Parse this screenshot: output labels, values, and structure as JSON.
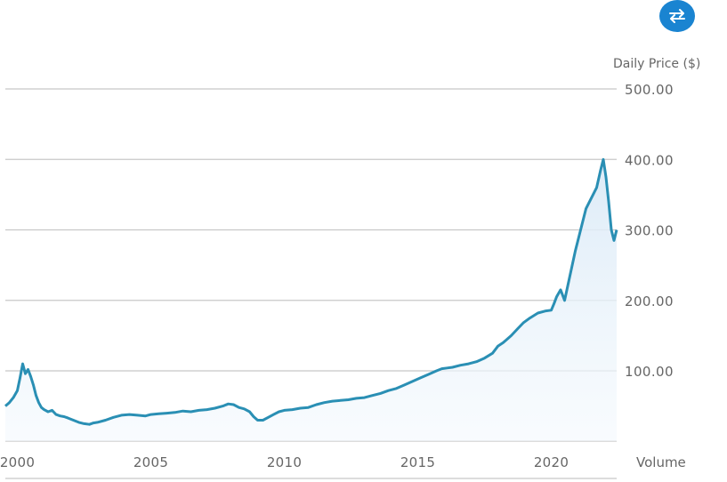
{
  "toolbar": {
    "swap_icon": "swap-arrows-icon",
    "accent": "#1a84d1"
  },
  "colors": {
    "line": "#2a8fb4",
    "area_top": "#dbeaf7",
    "grid": "#c8c8c8",
    "text": "#666666"
  },
  "volume_label": "Volume",
  "chart_data": {
    "type": "line",
    "title": "",
    "ylabel": "Daily Price ($)",
    "xlabel": "",
    "ylim": [
      0,
      500
    ],
    "xlim": [
      1999.55,
      2022.45
    ],
    "y_ticks": [
      {
        "value": 100,
        "label": "100.00"
      },
      {
        "value": 200,
        "label": "200.00"
      },
      {
        "value": 300,
        "label": "300.00"
      },
      {
        "value": 400,
        "label": "400.00"
      },
      {
        "value": 500,
        "label": "500.00"
      }
    ],
    "x_ticks": [
      {
        "value": 2000,
        "label": "2000"
      },
      {
        "value": 2005,
        "label": "2005"
      },
      {
        "value": 2010,
        "label": "2010"
      },
      {
        "value": 2015,
        "label": "2015"
      },
      {
        "value": 2020,
        "label": "2020"
      }
    ],
    "series": [
      {
        "name": "Daily Price",
        "x": [
          1999.55,
          1999.7,
          1999.85,
          2000.0,
          2000.1,
          2000.2,
          2000.3,
          2000.4,
          2000.5,
          2000.6,
          2000.7,
          2000.8,
          2000.9,
          2001.0,
          2001.15,
          2001.3,
          2001.45,
          2001.6,
          2001.75,
          2001.9,
          2002.1,
          2002.3,
          2002.5,
          2002.7,
          2002.85,
          2003.0,
          2003.3,
          2003.6,
          2003.9,
          2004.2,
          2004.5,
          2004.8,
          2005.0,
          2005.3,
          2005.6,
          2005.9,
          2006.2,
          2006.5,
          2006.8,
          2007.1,
          2007.4,
          2007.7,
          2007.9,
          2008.1,
          2008.3,
          2008.5,
          2008.7,
          2008.85,
          2009.0,
          2009.2,
          2009.4,
          2009.6,
          2009.8,
          2010.0,
          2010.3,
          2010.6,
          2010.9,
          2011.2,
          2011.5,
          2011.8,
          2012.1,
          2012.4,
          2012.7,
          2013.0,
          2013.3,
          2013.6,
          2013.9,
          2014.2,
          2014.5,
          2014.8,
          2015.1,
          2015.4,
          2015.7,
          2015.9,
          2016.1,
          2016.3,
          2016.6,
          2016.9,
          2017.2,
          2017.5,
          2017.8,
          2018.0,
          2018.2,
          2018.5,
          2018.75,
          2018.95,
          2019.2,
          2019.5,
          2019.8,
          2020.0,
          2020.1,
          2020.2,
          2020.35,
          2020.5,
          2020.7,
          2020.9,
          2021.1,
          2021.3,
          2021.5,
          2021.7,
          2021.85,
          2021.95,
          2022.05,
          2022.15,
          2022.25,
          2022.35,
          2022.45
        ],
        "values": [
          50,
          55,
          62,
          72,
          90,
          110,
          96,
          102,
          92,
          80,
          65,
          55,
          48,
          45,
          42,
          44,
          38,
          36,
          35,
          33,
          30,
          27,
          25,
          24,
          26,
          27,
          30,
          34,
          37,
          38,
          37,
          36,
          38,
          39,
          40,
          41,
          43,
          42,
          44,
          45,
          47,
          50,
          53,
          52,
          48,
          46,
          42,
          35,
          30,
          30,
          34,
          38,
          42,
          44,
          45,
          47,
          48,
          52,
          55,
          57,
          58,
          59,
          61,
          62,
          65,
          68,
          72,
          75,
          80,
          85,
          90,
          95,
          100,
          103,
          104,
          105,
          108,
          110,
          113,
          118,
          125,
          135,
          140,
          150,
          160,
          168,
          175,
          182,
          185,
          186,
          195,
          205,
          215,
          200,
          235,
          270,
          300,
          330,
          345,
          360,
          385,
          400,
          375,
          340,
          300,
          285,
          300
        ]
      }
    ]
  }
}
